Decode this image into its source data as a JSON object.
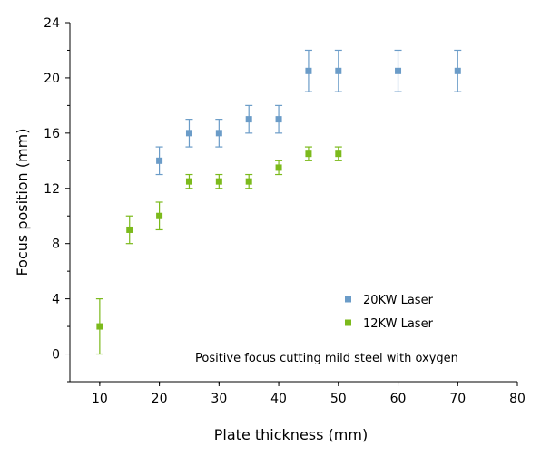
{
  "chart_data": {
    "type": "scatter",
    "title": "",
    "xlabel": "Plate thickness (mm)",
    "ylabel": "Focus position (mm)",
    "xlim": [
      5,
      80
    ],
    "ylim": [
      -2,
      24
    ],
    "xticks": [
      10,
      20,
      30,
      40,
      50,
      60,
      70,
      80
    ],
    "yticks": [
      0,
      4,
      8,
      12,
      16,
      20,
      24
    ],
    "grid": false,
    "legend_position": "bottom-right",
    "annotation": "Positive focus cutting mild steel with oxygen",
    "series": [
      {
        "name": "20KW Laser",
        "color": "#6b9cc8",
        "points": [
          {
            "x": 20,
            "y": 14,
            "err_low": 13,
            "err_high": 15
          },
          {
            "x": 25,
            "y": 16,
            "err_low": 15,
            "err_high": 17
          },
          {
            "x": 30,
            "y": 16,
            "err_low": 15,
            "err_high": 17
          },
          {
            "x": 35,
            "y": 17,
            "err_low": 16,
            "err_high": 18
          },
          {
            "x": 40,
            "y": 17,
            "err_low": 16,
            "err_high": 18
          },
          {
            "x": 45,
            "y": 20.5,
            "err_low": 19,
            "err_high": 22
          },
          {
            "x": 50,
            "y": 20.5,
            "err_low": 19,
            "err_high": 22
          },
          {
            "x": 60,
            "y": 20.5,
            "err_low": 19,
            "err_high": 22
          },
          {
            "x": 70,
            "y": 20.5,
            "err_low": 19,
            "err_high": 22
          }
        ]
      },
      {
        "name": "12KW Laser",
        "color": "#7cba1c",
        "points": [
          {
            "x": 10,
            "y": 2,
            "err_low": 0,
            "err_high": 4
          },
          {
            "x": 15,
            "y": 9,
            "err_low": 8,
            "err_high": 10
          },
          {
            "x": 20,
            "y": 10,
            "err_low": 9,
            "err_high": 11
          },
          {
            "x": 25,
            "y": 12.5,
            "err_low": 12,
            "err_high": 13
          },
          {
            "x": 30,
            "y": 12.5,
            "err_low": 12,
            "err_high": 13
          },
          {
            "x": 35,
            "y": 12.5,
            "err_low": 12,
            "err_high": 13
          },
          {
            "x": 40,
            "y": 13.5,
            "err_low": 13,
            "err_high": 14
          },
          {
            "x": 45,
            "y": 14.5,
            "err_low": 14,
            "err_high": 15
          },
          {
            "x": 50,
            "y": 14.5,
            "err_low": 14,
            "err_high": 15
          }
        ]
      }
    ]
  }
}
